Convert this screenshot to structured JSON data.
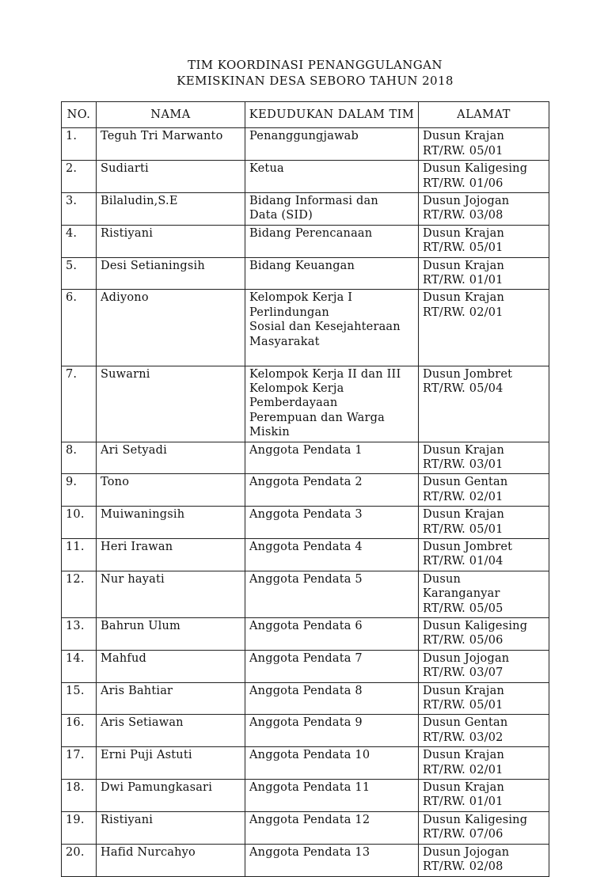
{
  "document": {
    "title_line1": "TIM KOORDINASI PENANGGULANGAN",
    "title_line2": "KEMISKINAN DESA SEBORO TAHUN 2018"
  },
  "table": {
    "headers": [
      "NO.",
      "NAMA",
      "KEDUDUKAN DALAM TIM",
      "ALAMAT"
    ],
    "rows": [
      {
        "no": "1.",
        "nama": "Teguh Tri Marwanto",
        "kedudukan": "Penanggungjawab",
        "alamat": "Dusun Krajan\nRT/RW. 05/01"
      },
      {
        "no": "2.",
        "nama": "Sudiarti",
        "kedudukan": "Ketua",
        "alamat": "Dusun Kaligesing\nRT/RW. 01/06"
      },
      {
        "no": "3.",
        "nama": "Bilaludin,S.E",
        "kedudukan": "Bidang Informasi dan\nData (SID)",
        "alamat": "Dusun Jojogan\nRT/RW. 03/08"
      },
      {
        "no": "4.",
        "nama": "Ristiyani",
        "kedudukan": "Bidang Perencanaan",
        "alamat": "Dusun Krajan\nRT/RW. 05/01"
      },
      {
        "no": "5.",
        "nama": "Desi Setianingsih",
        "kedudukan": "Bidang Keuangan",
        "alamat": "Dusun Krajan\nRT/RW. 01/01"
      },
      {
        "no": "6.",
        "nama": "Adiyono",
        "kedudukan": "Kelompok Kerja I\nPerlindungan\nSosial dan Kesejahteraan\nMasyarakat\n ",
        "alamat": "Dusun Krajan\nRT/RW. 02/01"
      },
      {
        "no": "7.",
        "nama": "Suwarni",
        "kedudukan": "Kelompok Kerja II dan III\nKelompok Kerja\nPemberdayaan\nPerempuan dan Warga\nMiskin",
        "alamat": "Dusun Jombret\nRT/RW. 05/04"
      },
      {
        "no": "8.",
        "nama": "Ari Setyadi",
        "kedudukan": "Anggota Pendata 1",
        "alamat": "Dusun Krajan\nRT/RW. 03/01"
      },
      {
        "no": "9.",
        "nama": "Tono",
        "kedudukan": "Anggota Pendata 2",
        "alamat": "Dusun Gentan\nRT/RW. 02/01"
      },
      {
        "no": "10.",
        "nama": "Muiwaningsih",
        "kedudukan": "Anggota Pendata 3",
        "alamat": "Dusun Krajan\nRT/RW. 05/01"
      },
      {
        "no": "11.",
        "nama": "Heri Irawan",
        "kedudukan": "Anggota Pendata 4",
        "alamat": "Dusun Jombret\nRT/RW. 01/04"
      },
      {
        "no": "12.",
        "nama": "Nur hayati",
        "kedudukan": "Anggota Pendata 5",
        "alamat": "Dusun\nKaranganyar\nRT/RW. 05/05"
      },
      {
        "no": "13.",
        "nama": "Bahrun Ulum",
        "kedudukan": "Anggota Pendata 6",
        "alamat": "Dusun Kaligesing\nRT/RW. 05/06"
      },
      {
        "no": "14.",
        "nama": "Mahfud",
        "kedudukan": "Anggota Pendata 7",
        "alamat": "Dusun Jojogan\nRT/RW. 03/07"
      },
      {
        "no": "15.",
        "nama": "Aris Bahtiar",
        "kedudukan": "Anggota Pendata 8",
        "alamat": "Dusun Krajan\nRT/RW. 05/01"
      },
      {
        "no": "16.",
        "nama": "Aris Setiawan",
        "kedudukan": "Anggota Pendata 9",
        "alamat": "Dusun Gentan\nRT/RW. 03/02"
      },
      {
        "no": "17.",
        "nama": "Erni Puji Astuti",
        "kedudukan": "Anggota Pendata 10",
        "alamat": "Dusun Krajan\nRT/RW. 02/01"
      },
      {
        "no": "18.",
        "nama": "Dwi Pamungkasari",
        "kedudukan": "Anggota Pendata 11",
        "alamat": "Dusun Krajan\nRT/RW. 01/01"
      },
      {
        "no": "19.",
        "nama": "Ristiyani",
        "kedudukan": "Anggota Pendata 12",
        "alamat": "Dusun Kaligesing\nRT/RW. 07/06"
      },
      {
        "no": "20.",
        "nama": "Hafid Nurcahyo",
        "kedudukan": "Anggota Pendata 13",
        "alamat": "Dusun Jojogan\nRT/RW. 02/08"
      }
    ]
  },
  "colors": {
    "background": "#ffffff",
    "text": "#121212",
    "border": "#222222"
  }
}
